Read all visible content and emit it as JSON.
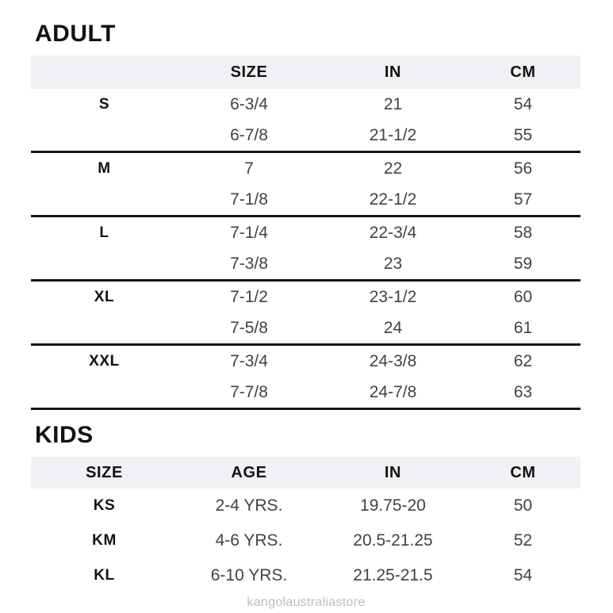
{
  "adult": {
    "title": "ADULT",
    "headers": {
      "label": "",
      "size": "SIZE",
      "inches": "IN",
      "cm": "CM"
    },
    "rows": [
      {
        "label": "S",
        "size": "6-3/4",
        "inches": "21",
        "cm": "54"
      },
      {
        "label": "",
        "size": "6-7/8",
        "inches": "21-1/2",
        "cm": "55"
      },
      {
        "label": "M",
        "size": "7",
        "inches": "22",
        "cm": "56"
      },
      {
        "label": "",
        "size": "7-1/8",
        "inches": "22-1/2",
        "cm": "57"
      },
      {
        "label": "L",
        "size": "7-1/4",
        "inches": "22-3/4",
        "cm": "58"
      },
      {
        "label": "",
        "size": "7-3/8",
        "inches": "23",
        "cm": "59"
      },
      {
        "label": "XL",
        "size": "7-1/2",
        "inches": "23-1/2",
        "cm": "60"
      },
      {
        "label": "",
        "size": "7-5/8",
        "inches": "24",
        "cm": "61"
      },
      {
        "label": "XXL",
        "size": "7-3/4",
        "inches": "24-3/8",
        "cm": "62"
      },
      {
        "label": "",
        "size": "7-7/8",
        "inches": "24-7/8",
        "cm": "63"
      }
    ]
  },
  "kids": {
    "title": "KIDS",
    "headers": {
      "size": "SIZE",
      "age": "AGE",
      "inches": "IN",
      "cm": "CM"
    },
    "rows": [
      {
        "size": "KS",
        "age": "2-4 YRS.",
        "inches": "19.75-20",
        "cm": "50"
      },
      {
        "size": "KM",
        "age": "4-6 YRS.",
        "inches": "20.5-21.25",
        "cm": "52"
      },
      {
        "size": "KL",
        "age": "6-10 YRS.",
        "inches": "21.25-21.5",
        "cm": "54"
      }
    ]
  },
  "watermark": "kangolaustraliastore",
  "colors": {
    "header_row_bg": "#eff1f4",
    "divider": "#161616",
    "heading_text": "#121212",
    "body_text": "#424242",
    "watermark_text": "#bdbdbd"
  }
}
